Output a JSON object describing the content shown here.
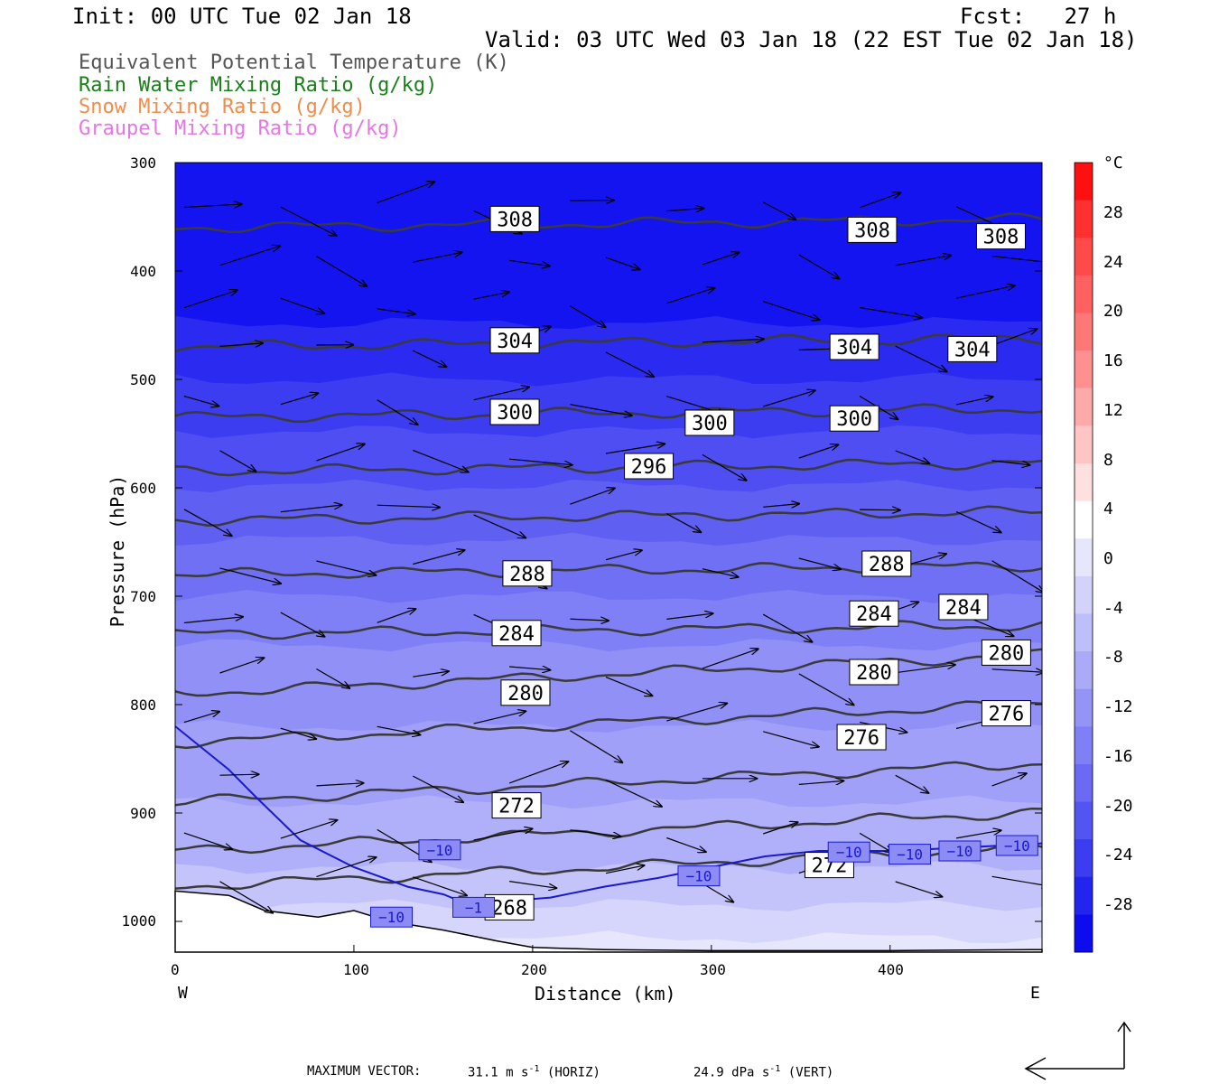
{
  "header": {
    "init": "Init: 00 UTC Tue 02 Jan 18",
    "fcst": "Fcst:   27 h",
    "valid": "Valid: 03 UTC Wed 03 Jan 18 (22 EST Tue 02 Jan 18)"
  },
  "legend": [
    {
      "label": "Equivalent Potential Temperature (K)",
      "color": "#555555"
    },
    {
      "label": "Rain Water Mixing Ratio (g/kg)",
      "color": "#1a7f1a"
    },
    {
      "label": "Snow Mixing Ratio (g/kg)",
      "color": "#f08c4c"
    },
    {
      "label": "Graupel Mixing Ratio (g/kg)",
      "color": "#e676e6"
    }
  ],
  "chart_data": {
    "type": "cross-section contour",
    "xlabel": "Distance (km)",
    "ylabel": "Pressure (hPa)",
    "x_ticks": [
      0,
      100,
      200,
      300,
      400
    ],
    "xlim": [
      0,
      485
    ],
    "y_ticks": [
      300,
      400,
      500,
      600,
      700,
      800,
      900,
      1000
    ],
    "ylim": [
      1028,
      300
    ],
    "left_end_label": "W",
    "right_end_label": "E",
    "shading_field_unit": "°C",
    "colorbar_ticks": [
      28,
      24,
      20,
      16,
      12,
      8,
      4,
      0,
      -4,
      -8,
      -12,
      -16,
      -20,
      -24,
      -28
    ],
    "theta_e_labels": [
      {
        "value": "308",
        "x": 190,
        "p": 352
      },
      {
        "value": "308",
        "x": 390,
        "p": 362
      },
      {
        "value": "308",
        "x": 462,
        "p": 368
      },
      {
        "value": "304",
        "x": 190,
        "p": 464
      },
      {
        "value": "304",
        "x": 380,
        "p": 470
      },
      {
        "value": "304",
        "x": 446,
        "p": 472
      },
      {
        "value": "300",
        "x": 190,
        "p": 530
      },
      {
        "value": "300",
        "x": 299,
        "p": 540
      },
      {
        "value": "300",
        "x": 380,
        "p": 536
      },
      {
        "value": "296",
        "x": 265,
        "p": 580
      },
      {
        "value": "288",
        "x": 197,
        "p": 679
      },
      {
        "value": "288",
        "x": 398,
        "p": 670
      },
      {
        "value": "284",
        "x": 191,
        "p": 734
      },
      {
        "value": "284",
        "x": 391,
        "p": 716
      },
      {
        "value": "284",
        "x": 441,
        "p": 710
      },
      {
        "value": "280",
        "x": 196,
        "p": 789
      },
      {
        "value": "280",
        "x": 391,
        "p": 770
      },
      {
        "value": "280",
        "x": 465,
        "p": 752
      },
      {
        "value": "276",
        "x": 384,
        "p": 830
      },
      {
        "value": "276",
        "x": 465,
        "p": 808
      },
      {
        "value": "272",
        "x": 191,
        "p": 893
      },
      {
        "value": "272",
        "x": 366,
        "p": 948
      },
      {
        "value": "268",
        "x": 187,
        "p": 987
      }
    ],
    "temperature_labels": [
      {
        "value": "−10",
        "x": 148,
        "p": 934
      },
      {
        "value": "−10",
        "x": 121,
        "p": 996
      },
      {
        "value": "−1",
        "x": 167,
        "p": 987
      },
      {
        "value": "−10",
        "x": 293,
        "p": 958
      },
      {
        "value": "−10",
        "x": 377,
        "p": 936
      },
      {
        "value": "−10",
        "x": 411,
        "p": 938
      },
      {
        "value": "−10",
        "x": 439,
        "p": 935
      },
      {
        "value": "−10",
        "x": 471,
        "p": 930
      }
    ]
  },
  "footer": {
    "max_vector_label": "MAXIMUM VECTOR:",
    "horiz_value": "31.1 m s",
    "horiz_exp": "-1",
    "horiz_tag": "(HORIZ)",
    "vert_value": "24.9 dPa s",
    "vert_exp": "-1",
    "vert_tag": "(VERT)"
  }
}
